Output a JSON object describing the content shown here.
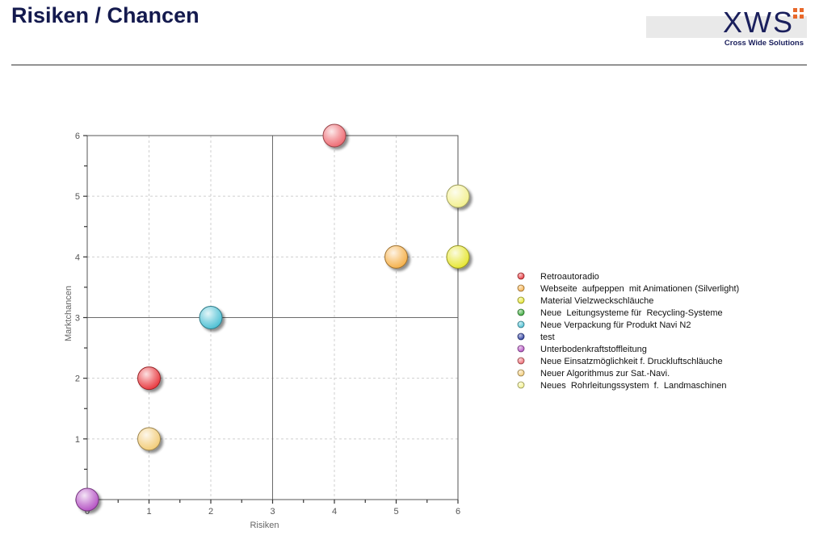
{
  "header": {
    "title": "Risiken / Chancen",
    "logo_text": "XWS",
    "logo_tagline": "Cross Wide Solutions"
  },
  "colors": {
    "title": "#141a4e",
    "logo_accent": "#e8682a"
  },
  "chart_data": {
    "type": "scatter",
    "title": "",
    "xlabel": "Risiken",
    "ylabel": "Marktchancen",
    "xlim": [
      0,
      6
    ],
    "ylim": [
      0,
      6
    ],
    "x_ticks": [
      0,
      1,
      2,
      3,
      4,
      5,
      6
    ],
    "y_ticks": [
      0,
      1,
      2,
      3,
      4,
      5,
      6
    ],
    "grid": true,
    "quadrant_lines": {
      "x": 3,
      "y": 3
    },
    "legend_position": "right",
    "series": [
      {
        "name": "Retroautoradio",
        "color": "#e8383e",
        "points": [
          {
            "x": 1,
            "y": 2
          }
        ]
      },
      {
        "name": "Webseite  aufpeppen  mit Animationen (Silverlight)",
        "color": "#f5b04a",
        "points": [
          {
            "x": 5,
            "y": 4
          }
        ]
      },
      {
        "name": "Material Vielzweckschläuche",
        "color": "#e6e632",
        "points": [
          {
            "x": 6,
            "y": 4
          }
        ]
      },
      {
        "name": "Neue  Leitungsysteme für  Recycling-Systeme",
        "color": "#3aaa3a",
        "points": []
      },
      {
        "name": "Neue Verpackung für Produkt Navi N2",
        "color": "#4cc0d4",
        "points": [
          {
            "x": 2,
            "y": 3
          }
        ]
      },
      {
        "name": "test",
        "color": "#2c3ea0",
        "points": []
      },
      {
        "name": "Unterbodenkraftstoffleitung",
        "color": "#b552c4",
        "points": [
          {
            "x": 0,
            "y": 0
          }
        ]
      },
      {
        "name": "Neue Einsatzmöglichkeit f. Druckluftschläuche",
        "color": "#ee6a72",
        "points": [
          {
            "x": 4,
            "y": 6
          }
        ]
      },
      {
        "name": "Neuer Algorithmus zur Sat.-Navi.",
        "color": "#f2cc78",
        "points": [
          {
            "x": 1,
            "y": 1
          }
        ]
      },
      {
        "name": "Neues  Rohrleitungssystem  f.  Landmaschinen",
        "color": "#f2f08e",
        "points": [
          {
            "x": 6,
            "y": 5
          }
        ]
      }
    ]
  }
}
